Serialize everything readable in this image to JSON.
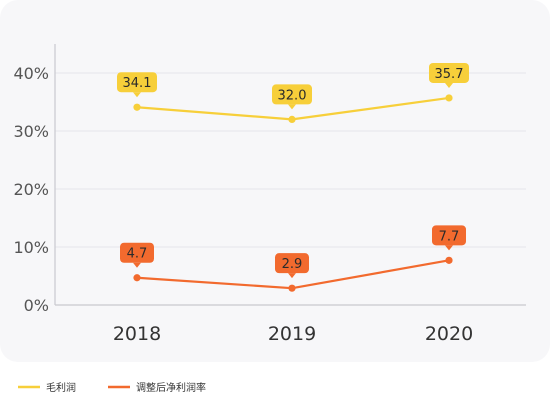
{
  "chart_data": {
    "type": "line",
    "categories": [
      "2018",
      "2019",
      "2020"
    ],
    "series": [
      {
        "name": "毛利润",
        "values": [
          34.1,
          32.0,
          35.7
        ],
        "color": "#F7CF3A",
        "label_color": "#2b2b2b"
      },
      {
        "name": "调整后净利润率",
        "values": [
          4.7,
          2.9,
          7.7
        ],
        "color": "#F26A2E",
        "label_color": "#2b2b2b"
      }
    ],
    "data_labels": [
      [
        "34.1",
        "32.0",
        "35.7"
      ],
      [
        "4.7",
        "2.9",
        "7.7"
      ]
    ],
    "y_ticks": [
      {
        "value": 0,
        "label": "0%"
      },
      {
        "value": 10,
        "label": "10%"
      },
      {
        "value": 20,
        "label": "20%"
      },
      {
        "value": 30,
        "label": "30%"
      },
      {
        "value": 40,
        "label": "40%"
      }
    ],
    "ylim": [
      0,
      45
    ],
    "grid": true,
    "legend_position": "bottom-left",
    "title": "",
    "xlabel": "",
    "ylabel": ""
  }
}
